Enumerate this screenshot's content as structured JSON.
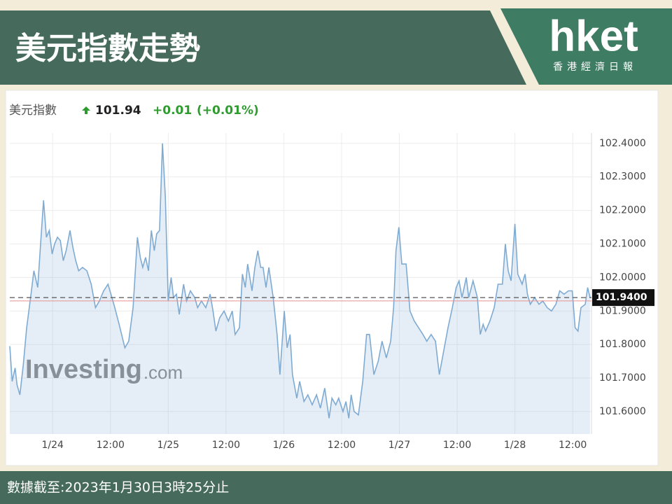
{
  "header": {
    "title": "美元指數走勢",
    "logo": "hket",
    "logo_sub": "香港經濟日報"
  },
  "chart_data": {
    "type": "area",
    "name": "美元指數",
    "price": 101.94,
    "change": "+0.01",
    "change_pct": "(+0.01%)",
    "watermark": "Investing",
    "watermark_suffix": ".com",
    "color": "#7fabd3",
    "grid": true,
    "x": [
      -8.9,
      -8.4,
      -7.8,
      -7.4,
      -6.8,
      -6.1,
      -5.4,
      -4.5,
      -3.9,
      -3.1,
      -2.5,
      -1.9,
      -1.3,
      -0.7,
      -0.1,
      0.4,
      1.0,
      1.6,
      2.2,
      2.8,
      3.6,
      4.2,
      4.8,
      5.4,
      6.2,
      7.1,
      8.0,
      8.9,
      9.7,
      10.6,
      11.5,
      12.1,
      12.9,
      13.8,
      15.0,
      15.8,
      16.7,
      17.6,
      18.2,
      18.7,
      19.3,
      19.9,
      20.5,
      21.1,
      21.6,
      22.2,
      22.8,
      23.4,
      24.0,
      24.6,
      25.1,
      25.7,
      26.3,
      27.2,
      27.8,
      28.6,
      29.5,
      30.1,
      30.9,
      31.8,
      32.7,
      33.3,
      33.9,
      34.7,
      35.6,
      36.5,
      37.3,
      37.9,
      38.8,
      39.4,
      40.0,
      40.5,
      41.4,
      42.0,
      42.6,
      43.2,
      43.7,
      44.3,
      44.9,
      45.8,
      46.6,
      47.2,
      48.1,
      48.7,
      49.3,
      49.8,
      50.7,
      51.3,
      52.2,
      53.0,
      53.9,
      54.8,
      55.6,
      56.5,
      57.4,
      58.0,
      58.8,
      59.4,
      60.3,
      60.9,
      61.5,
      62.0,
      62.6,
      63.5,
      64.4,
      65.2,
      65.8,
      66.7,
      67.6,
      68.4,
      69.3,
      70.2,
      70.8,
      71.3,
      71.9,
      72.5,
      73.4,
      74.2,
      75.1,
      76.0,
      76.9,
      77.7,
      78.6,
      79.5,
      80.3,
      81.2,
      82.1,
      83.0,
      83.8,
      84.4,
      85.0,
      85.9,
      86.4,
      87.3,
      88.2,
      88.8,
      89.4,
      89.9,
      90.8,
      91.7,
      92.5,
      93.4,
      94.0,
      94.6,
      95.2,
      96.0,
      96.6,
      97.5,
      98.1,
      98.6,
      99.2,
      100.1,
      101.0,
      101.8,
      102.7,
      103.6,
      104.5,
      105.3,
      106.2,
      107.1,
      107.9,
      108.5,
      109.1,
      109.7,
      110.6,
      111.1,
      111.6
    ],
    "values": [
      101.795,
      101.69,
      101.73,
      101.68,
      101.65,
      101.74,
      101.85,
      101.95,
      102.02,
      101.97,
      102.1,
      102.23,
      102.12,
      102.14,
      102.07,
      102.1,
      102.12,
      102.11,
      102.05,
      102.08,
      102.14,
      102.09,
      102.05,
      102.02,
      102.03,
      102.02,
      101.98,
      101.91,
      101.93,
      101.96,
      101.98,
      101.95,
      101.91,
      101.86,
      101.79,
      101.81,
      101.91,
      102.12,
      102.06,
      102.03,
      102.06,
      102.02,
      102.14,
      102.08,
      102.13,
      102.14,
      102.4,
      102.24,
      101.93,
      102.0,
      101.94,
      101.95,
      101.89,
      101.98,
      101.93,
      101.96,
      101.94,
      101.91,
      101.93,
      101.91,
      101.95,
      101.9,
      101.84,
      101.88,
      101.9,
      101.87,
      101.9,
      101.83,
      101.85,
      102.01,
      101.97,
      102.04,
      101.96,
      102.03,
      102.08,
      102.03,
      102.03,
      101.97,
      102.03,
      101.94,
      101.83,
      101.71,
      101.9,
      101.79,
      101.83,
      101.71,
      101.64,
      101.69,
      101.63,
      101.65,
      101.62,
      101.65,
      101.61,
      101.67,
      101.58,
      101.64,
      101.62,
      101.64,
      101.6,
      101.63,
      101.58,
      101.65,
      101.6,
      101.59,
      101.69,
      101.83,
      101.83,
      101.71,
      101.75,
      101.81,
      101.76,
      101.81,
      101.91,
      102.08,
      102.15,
      102.04,
      102.04,
      101.9,
      101.87,
      101.85,
      101.83,
      101.81,
      101.83,
      101.81,
      101.71,
      101.78,
      101.85,
      101.91,
      101.97,
      101.99,
      101.94,
      102.0,
      101.94,
      101.99,
      101.94,
      101.83,
      101.86,
      101.84,
      101.87,
      101.91,
      101.98,
      101.98,
      102.1,
      102.02,
      101.99,
      102.16,
      102.01,
      101.98,
      102.01,
      101.95,
      101.92,
      101.94,
      101.92,
      101.93,
      101.91,
      101.9,
      101.92,
      101.96,
      101.95,
      101.96,
      101.96,
      101.85,
      101.84,
      101.91,
      101.92,
      101.97,
      101.94
    ],
    "xlim": [
      -8.9,
      111.9
    ],
    "xticks": [
      {
        "value": 0,
        "label": "1/24"
      },
      {
        "value": 12,
        "label": "12:00"
      },
      {
        "value": 24,
        "label": "1/25"
      },
      {
        "value": 36,
        "label": "12:00"
      },
      {
        "value": 48,
        "label": "1/26"
      },
      {
        "value": 60,
        "label": "12:00"
      },
      {
        "value": 72,
        "label": "1/27"
      },
      {
        "value": 84,
        "label": "12:00"
      },
      {
        "value": 96,
        "label": "1/28"
      },
      {
        "value": 108,
        "label": "12:00"
      }
    ],
    "ylim": [
      101.533,
      102.431
    ],
    "yticks": [
      {
        "value": 101.6,
        "label": "101.6000"
      },
      {
        "value": 101.7,
        "label": "101.7000"
      },
      {
        "value": 101.8,
        "label": "101.8000"
      },
      {
        "value": 101.9,
        "label": "101.9000"
      },
      {
        "value": 102.0,
        "label": "102.0000"
      },
      {
        "value": 102.1,
        "label": "102.1000"
      },
      {
        "value": 102.2,
        "label": "102.2000"
      },
      {
        "value": 102.3,
        "label": "102.3000"
      },
      {
        "value": 102.4,
        "label": "102.4000"
      }
    ],
    "last_value": {
      "value": 101.94,
      "label": "101.9400"
    },
    "reference_line": {
      "value": 101.93,
      "color": "#e89090"
    }
  },
  "footer": {
    "text": "數據截至:2023年1月30日3時25分止"
  }
}
